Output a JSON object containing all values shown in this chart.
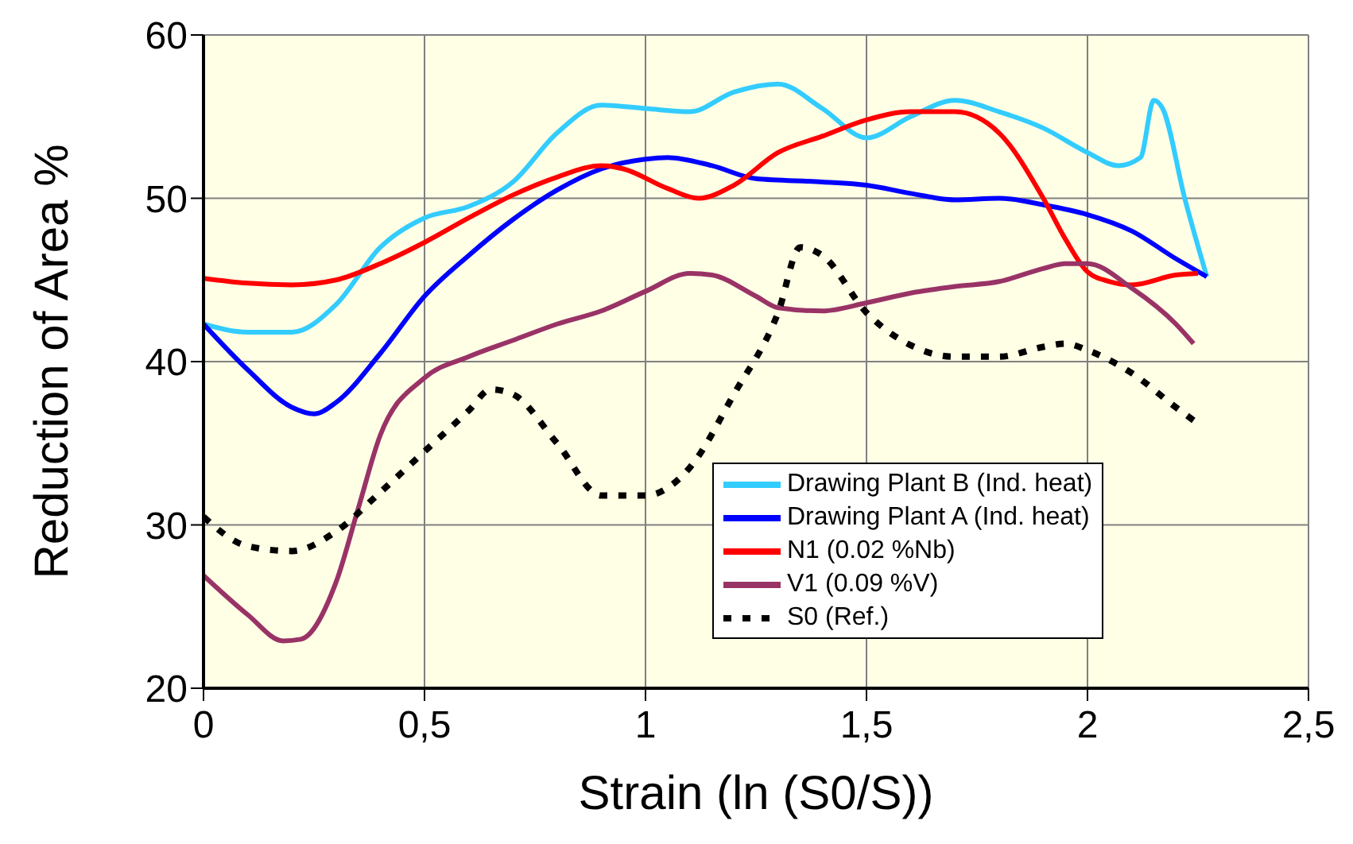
{
  "chart_data": {
    "type": "line",
    "xlabel": "Strain (ln (S0/S))",
    "ylabel": "Reduction of Area %",
    "xlim": [
      0,
      2.5
    ],
    "xticks": [
      0,
      {
        "value": 0.5,
        "label": "0,5"
      },
      1,
      {
        "value": 1.5,
        "label": "1,5"
      },
      2,
      {
        "value": 2.5,
        "label": "2,5"
      }
    ],
    "ylim": [
      20,
      60
    ],
    "yticks": [
      20,
      30,
      40,
      50,
      60
    ],
    "grid": true,
    "legend": "bottom right",
    "marker": "none",
    "series": [
      {
        "name": "Drawing Plant B (Ind. heat)",
        "color": "#33ccff",
        "line_style": "solid",
        "x": [
          0,
          0.1,
          0.2,
          0.3,
          0.4,
          0.5,
          0.6,
          0.7,
          0.8,
          0.9,
          1.0,
          1.1,
          1.2,
          1.3,
          1.4,
          1.5,
          1.6,
          1.7,
          1.8,
          1.9,
          2.0,
          2.07,
          2.12,
          2.15,
          2.17,
          2.22,
          2.27
        ],
        "values": [
          42.3,
          41.8,
          41.8,
          43.5,
          47,
          48.8,
          49.5,
          51,
          54,
          55.7,
          55.5,
          55.3,
          56.5,
          57,
          55.5,
          53.7,
          55,
          56,
          55.3,
          54.3,
          52.8,
          52,
          52.5,
          56,
          55.5,
          50,
          45.2
        ]
      },
      {
        "name": "Drawing Plant A (Ind. heat)",
        "color": "#0000ff",
        "line_style": "solid",
        "x": [
          0,
          0.1,
          0.2,
          0.25,
          0.3,
          0.4,
          0.5,
          0.6,
          0.7,
          0.8,
          0.9,
          1.0,
          1.05,
          1.15,
          1.25,
          1.4,
          1.5,
          1.6,
          1.7,
          1.8,
          1.9,
          2.0,
          2.1,
          2.2,
          2.27
        ],
        "values": [
          42.3,
          39.5,
          37.2,
          36.8,
          37.5,
          40.5,
          44,
          46.5,
          48.7,
          50.5,
          51.8,
          52.4,
          52.5,
          52,
          51.2,
          51,
          50.8,
          50.3,
          49.9,
          50,
          49.6,
          49,
          48,
          46.3,
          45.2
        ]
      },
      {
        "name": "N1 (0.02 %Nb)",
        "color": "#ff0000",
        "line_style": "solid",
        "x": [
          0,
          0.1,
          0.2,
          0.3,
          0.4,
          0.5,
          0.6,
          0.7,
          0.8,
          0.9,
          0.95,
          1.05,
          1.12,
          1.2,
          1.3,
          1.4,
          1.5,
          1.6,
          1.7,
          1.8,
          1.9,
          1.95,
          2.0,
          2.05,
          2.1,
          2.2,
          2.25
        ],
        "values": [
          45.1,
          44.8,
          44.7,
          45,
          46,
          47.3,
          48.8,
          50.2,
          51.3,
          52,
          51.8,
          50.6,
          50,
          50.8,
          52.8,
          53.8,
          54.8,
          55.3,
          55.3,
          54,
          50,
          47.5,
          45.5,
          44.9,
          44.7,
          45.3,
          45.4
        ]
      },
      {
        "name": "V1 (0.09 %V)",
        "color": "#993366",
        "line_style": "solid",
        "x": [
          0,
          0.1,
          0.18,
          0.22,
          0.3,
          0.35,
          0.4,
          0.5,
          0.6,
          0.7,
          0.8,
          0.9,
          1.0,
          1.1,
          1.15,
          1.25,
          1.3,
          1.4,
          1.5,
          1.6,
          1.7,
          1.8,
          1.9,
          1.95,
          2.0,
          2.1,
          2.2,
          2.24
        ],
        "values": [
          26.9,
          24.5,
          22.9,
          23,
          26.5,
          31,
          35.5,
          39,
          40.3,
          41.3,
          42.3,
          43.1,
          44.3,
          45.4,
          45.3,
          44,
          43.3,
          43.1,
          43.6,
          44.2,
          44.6,
          44.9,
          45.7,
          46,
          46,
          44.5,
          42.3,
          41.1
        ]
      },
      {
        "name": "S0 (Ref.)",
        "color": "#000000",
        "line_style": "dotted",
        "x": [
          0,
          0.1,
          0.2,
          0.3,
          0.4,
          0.5,
          0.6,
          0.65,
          0.7,
          0.8,
          0.9,
          1.0,
          1.1,
          1.2,
          1.3,
          1.35,
          1.4,
          1.5,
          1.6,
          1.7,
          1.8,
          1.9,
          1.95,
          2.0,
          2.1,
          2.2,
          2.24
        ],
        "values": [
          30.5,
          28.7,
          28.4,
          29.6,
          32,
          34.5,
          37,
          38.3,
          38,
          35,
          31.8,
          31.8,
          33.5,
          38,
          43,
          47,
          46.5,
          43,
          41,
          40.3,
          40.3,
          40.9,
          41.1,
          40.7,
          39.3,
          37.2,
          36.4
        ]
      }
    ]
  }
}
